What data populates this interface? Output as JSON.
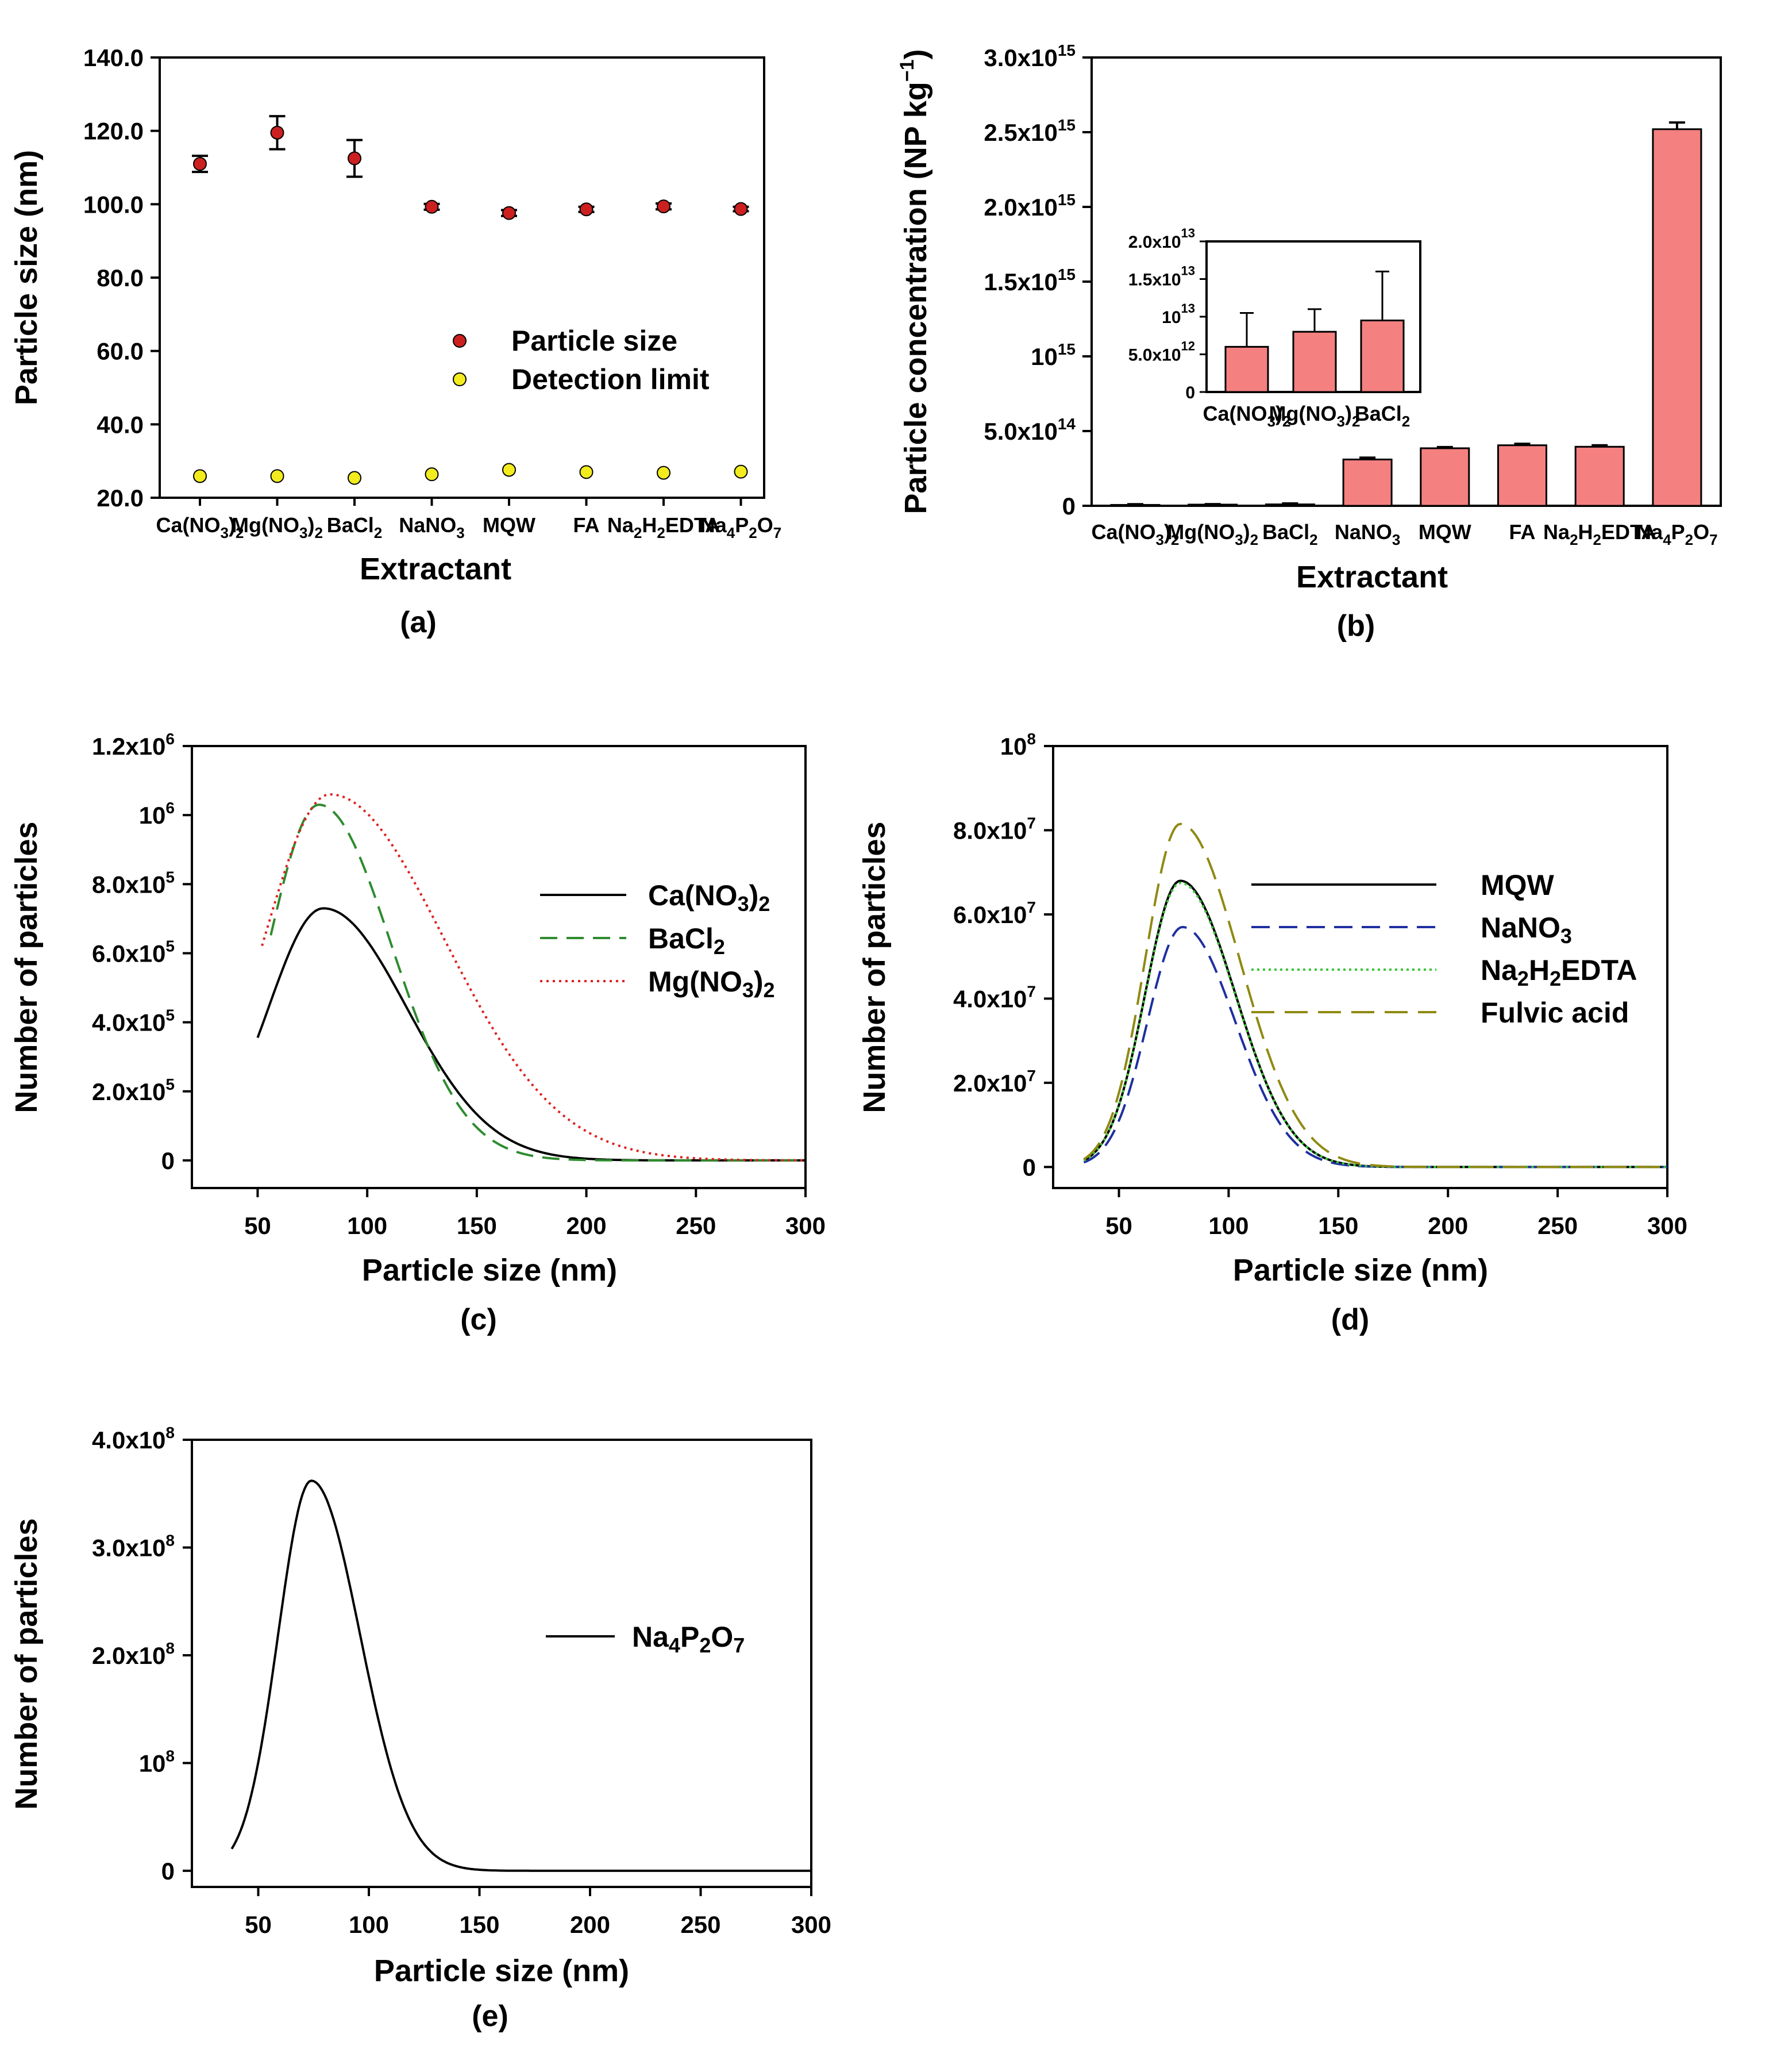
{
  "chart_data": [
    {
      "id": "a",
      "type": "scatter",
      "panel_label": "(a)",
      "xlabel": "Extractant",
      "ylabel": "Particle size (nm)",
      "ylim": [
        20,
        140
      ],
      "yticks": [
        "20.0",
        "40.0",
        "60.0",
        "80.0",
        "100.0",
        "120.0",
        "140.0"
      ],
      "categories": [
        "Ca(NO3)2",
        "Mg(NO3)2",
        "BaCl2",
        "NaNO3",
        "MQW",
        "FA",
        "Na2H2EDTA",
        "Na4P2O7"
      ],
      "series": [
        {
          "name": "Particle size",
          "color": "#cc2020",
          "values": [
            111,
            119.5,
            112.5,
            99.3,
            97.6,
            98.6,
            99.4,
            98.7
          ],
          "errors": [
            2.2,
            4.5,
            5,
            0.8,
            0.8,
            0.7,
            0.8,
            0.6
          ]
        },
        {
          "name": "Detection limit",
          "color": "#f2ec1f",
          "values": [
            25.9,
            25.9,
            25.4,
            26.4,
            27.6,
            27,
            26.8,
            27.1
          ]
        }
      ],
      "legend": "center-right"
    },
    {
      "id": "b",
      "type": "bar",
      "panel_label": "(b)",
      "xlabel": "Extractant",
      "ylabel": "Particle concentration (NP kg",
      "ylabel_exp": "−1",
      "ylabel_close": ")",
      "ylim": [
        0,
        3000000000000000.0
      ],
      "yticks": [
        {
          "v": 0,
          "m": "0",
          "e": ""
        },
        {
          "v": 500000000000000.0,
          "m": "5.0x10",
          "e": "14"
        },
        {
          "v": 1000000000000000.0,
          "m": "10",
          "e": "15"
        },
        {
          "v": 1500000000000000.0,
          "m": "1.5x10",
          "e": "15"
        },
        {
          "v": 2000000000000000.0,
          "m": "2.0x10",
          "e": "15"
        },
        {
          "v": 2500000000000000.0,
          "m": "2.5x10",
          "e": "15"
        },
        {
          "v": 3000000000000000.0,
          "m": "3.0x10",
          "e": "15"
        }
      ],
      "bar_color": "#f48080",
      "categories": [
        "Ca(NO3)2",
        "Mg(NO3)2",
        "BaCl2",
        "NaNO3",
        "MQW",
        "FA",
        "Na2H2EDTA",
        "Na4P2O7"
      ],
      "values": [
        6000000000000.0,
        8000000000000.0,
        9500000000000.0,
        310000000000000.0,
        385000000000000.0,
        405000000000000.0,
        395000000000000.0,
        2520000000000000.0
      ],
      "errors": [
        4500000000000.0,
        3000000000000.0,
        6500000000000.0,
        12000000000000.0,
        8000000000000.0,
        10000000000000.0,
        10000000000000.0,
        45000000000000.0
      ],
      "inset": {
        "ylim": [
          0,
          20000000000000.0
        ],
        "yticks": [
          {
            "v": 0,
            "m": "0",
            "e": ""
          },
          {
            "v": 5000000000000.0,
            "m": "5.0x10",
            "e": "12"
          },
          {
            "v": 10000000000000.0,
            "m": "10",
            "e": "13"
          },
          {
            "v": 15000000000000.0,
            "m": "1.5x10",
            "e": "13"
          },
          {
            "v": 20000000000000.0,
            "m": "2.0x10",
            "e": "13"
          }
        ],
        "categories": [
          "Ca(NO3)2",
          "Mg(NO3)2",
          "BaCl2"
        ],
        "values": [
          6000000000000.0,
          8000000000000.0,
          9500000000000.0
        ],
        "errors": [
          4500000000000.0,
          3000000000000.0,
          6500000000000.0
        ]
      }
    },
    {
      "id": "c",
      "type": "line",
      "panel_label": "(c)",
      "xlabel": "Particle size (nm)",
      "ylabel": "Number of particles",
      "xlim": [
        20,
        300
      ],
      "xticks": [
        50,
        100,
        150,
        200,
        250,
        300
      ],
      "ylim": [
        -80000,
        1200000
      ],
      "yticks": [
        {
          "v": 0,
          "m": "0",
          "e": ""
        },
        {
          "v": 200000,
          "m": "2.0x10",
          "e": "5"
        },
        {
          "v": 400000,
          "m": "4.0x10",
          "e": "5"
        },
        {
          "v": 600000,
          "m": "6.0x10",
          "e": "5"
        },
        {
          "v": 800000,
          "m": "8.0x10",
          "e": "5"
        },
        {
          "v": 1000000,
          "m": "10",
          "e": "6"
        },
        {
          "v": 1200000,
          "m": "1.2x10",
          "e": "6"
        }
      ],
      "series": [
        {
          "name": "Ca(NO3)2",
          "color": "#000000",
          "dash": "",
          "x_start": 50,
          "peak_x": 80,
          "peak_y": 730000,
          "sigma_left": 25,
          "sigma_right": 38
        },
        {
          "name": "BaCl2",
          "color": "#2e8b2e",
          "dash": "30,16",
          "x_start": 56,
          "peak_x": 78,
          "peak_y": 1030000,
          "sigma_left": 23,
          "sigma_right": 33
        },
        {
          "name": "Mg(NO3)2",
          "color": "#dd2222",
          "dash": "4,7",
          "x_start": 52,
          "peak_x": 83,
          "peak_y": 1060000,
          "sigma_left": 30,
          "sigma_right": 52
        }
      ],
      "legend": "center-right"
    },
    {
      "id": "d",
      "type": "line",
      "panel_label": "(d)",
      "xlabel": "Particle size (nm)",
      "ylabel": "Number of particles",
      "xlim": [
        20,
        300
      ],
      "xticks": [
        50,
        100,
        150,
        200,
        250,
        300
      ],
      "ylim": [
        -5000000,
        100000000
      ],
      "yticks": [
        {
          "v": 0,
          "m": "0",
          "e": ""
        },
        {
          "v": 20000000,
          "m": "2.0x10",
          "e": "7"
        },
        {
          "v": 40000000,
          "m": "4.0x10",
          "e": "7"
        },
        {
          "v": 60000000,
          "m": "6.0x10",
          "e": "7"
        },
        {
          "v": 80000000,
          "m": "8.0x10",
          "e": "7"
        },
        {
          "v": 100000000,
          "m": "10",
          "e": "8"
        }
      ],
      "series": [
        {
          "name": "MQW",
          "color": "#000000",
          "dash": "",
          "x_start": 34,
          "peak_x": 78,
          "peak_y": 68000000,
          "sigma_left": 16,
          "sigma_right": 25
        },
        {
          "name": "NaNO3",
          "color": "#1f2fa0",
          "dash": "32,16",
          "x_start": 34,
          "peak_x": 79,
          "peak_y": 57000000,
          "sigma_left": 16,
          "sigma_right": 24
        },
        {
          "name": "Na2H2EDTA",
          "color": "#3cc43c",
          "dash": "4,6",
          "x_start": 34,
          "peak_x": 78,
          "peak_y": 67500000,
          "sigma_left": 16,
          "sigma_right": 25
        },
        {
          "name": "Fulvic acid",
          "color": "#8f8a12",
          "dash": "40,18",
          "x_start": 34,
          "peak_x": 78,
          "peak_y": 81500000,
          "sigma_left": 16,
          "sigma_right": 27
        }
      ],
      "legend": "top-right"
    },
    {
      "id": "e",
      "type": "line",
      "panel_label": "(e)",
      "xlabel": "Particle size (nm)",
      "ylabel": "Number of particles",
      "xlim": [
        20,
        300
      ],
      "xticks": [
        50,
        100,
        150,
        200,
        250,
        300
      ],
      "ylim": [
        -15000000,
        400000000
      ],
      "yticks": [
        {
          "v": 0,
          "m": "0",
          "e": ""
        },
        {
          "v": 100000000,
          "m": "10",
          "e": "8"
        },
        {
          "v": 200000000,
          "m": "2.0x10",
          "e": "8"
        },
        {
          "v": 300000000,
          "m": "3.0x10",
          "e": "8"
        },
        {
          "v": 400000000,
          "m": "4.0x10",
          "e": "8"
        }
      ],
      "series": [
        {
          "name": "Na4P2O7",
          "color": "#000000",
          "dash": "",
          "x_start": 38,
          "peak_x": 74,
          "peak_y": 362000000,
          "sigma_left": 15,
          "sigma_right": 22
        }
      ],
      "legend": "center-right"
    }
  ]
}
